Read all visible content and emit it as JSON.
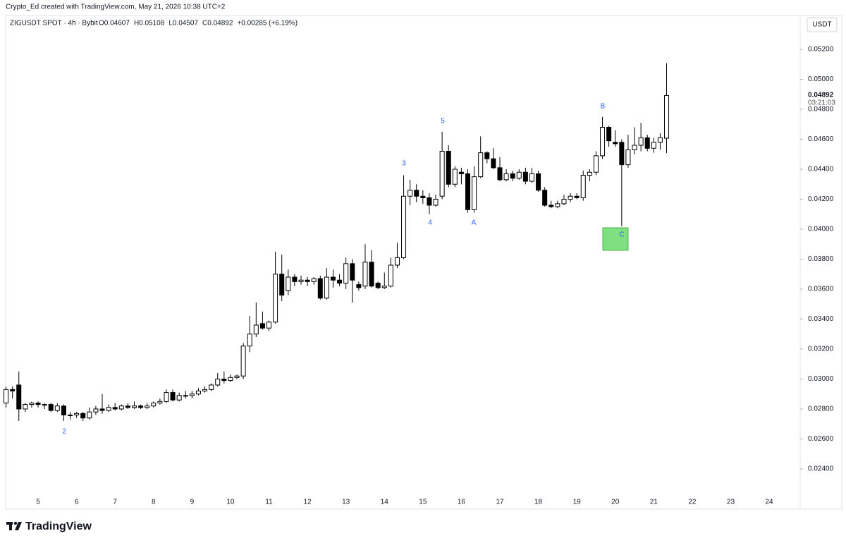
{
  "header": {
    "credit": "Crypto_Ed created with TradingView.com, May 21, 2026 10:38 UTC+2"
  },
  "chart_data": {
    "type": "candlestick",
    "symbol": "ZIGUSDT SPOT · 4h · Bybit",
    "legend_ohlc": [
      "O0.04607",
      "H0.05108",
      "L0.04507",
      "C0.04892"
    ],
    "change": "+0.00285 (+6.19%)",
    "currency": "USDT",
    "last_price_label": "0.04892",
    "countdown": "03:21:03",
    "up_color": "#ffffff",
    "down_color": "#000000",
    "border_color": "#000000",
    "annotation_color": "#2962ff",
    "annotations": [
      "2",
      "3",
      "4",
      "5",
      "A",
      "B",
      "C"
    ],
    "highlight_color": "#7ee07e",
    "grid": false,
    "categories": [
      null,
      null,
      null,
      null,
      null,
      "5",
      null,
      null,
      null,
      null,
      null,
      "6",
      null,
      null,
      null,
      null,
      null,
      "7",
      null,
      null,
      null,
      null,
      null,
      "8",
      null,
      null,
      null,
      null,
      null,
      "9",
      null,
      null,
      null,
      null,
      null,
      "10",
      null,
      null,
      null,
      null,
      null,
      "11",
      null,
      null,
      null,
      null,
      null,
      "12",
      null,
      null,
      null,
      null,
      null,
      "13",
      null,
      null,
      null,
      null,
      null,
      "14",
      null,
      null,
      null,
      null,
      null,
      "15",
      null,
      null,
      null,
      null,
      null,
      "16",
      null,
      null,
      null,
      null,
      null,
      "17",
      null,
      null,
      null,
      null,
      null,
      "18",
      null,
      null,
      null,
      null,
      null,
      "19",
      null,
      null,
      null,
      null,
      null,
      "20",
      null,
      null,
      null,
      null,
      null,
      "21",
      null,
      null,
      null,
      null,
      null,
      "22",
      null,
      null,
      null,
      null,
      null,
      "23",
      null,
      null,
      null,
      null,
      null,
      "24",
      null,
      null,
      null,
      null
    ],
    "open": [
      0.0284,
      0.0293,
      0.0296,
      0.028,
      0.0283,
      0.0284,
      0.0283,
      0.0283,
      0.0279,
      0.0282,
      0.0276,
      0.0276,
      0.0277,
      0.0274,
      0.0278,
      0.028,
      0.0279,
      0.0281,
      0.028,
      0.0282,
      0.0281,
      0.0282,
      0.0281,
      0.0282,
      0.0284,
      0.0285,
      0.0291,
      0.0286,
      0.0289,
      0.0289,
      0.029,
      0.0292,
      0.0293,
      0.0296,
      0.03,
      0.0299,
      0.0301,
      0.0302,
      0.0322,
      0.033,
      0.0337,
      0.0334,
      0.0338,
      0.037,
      0.0359,
      0.0368,
      0.0365,
      0.0366,
      0.0365,
      0.0367,
      0.0354,
      0.0368,
      0.0366,
      0.0364,
      0.0377,
      0.0363,
      0.0362,
      0.0378,
      0.0364,
      0.0361,
      0.0362,
      0.0376,
      0.0381,
      0.0422,
      0.0426,
      0.0422,
      0.0421,
      0.0416,
      0.0422,
      0.0452,
      0.043,
      0.0438,
      0.0437,
      0.0413,
      0.0435,
      0.0451,
      0.0447,
      0.0441,
      0.0433,
      0.0437,
      0.0434,
      0.0438,
      0.0432,
      0.0437,
      0.0426,
      0.0416,
      0.0415,
      0.0417,
      0.042,
      0.0422,
      0.0421,
      0.0436,
      0.0438,
      0.0449,
      0.0468,
      0.0458,
      0.0458,
      0.0443,
      0.0453,
      0.0456,
      0.0461,
      0.0454,
      0.0458,
      0.04607,
      null,
      null,
      null,
      null,
      null,
      null,
      null,
      null,
      null,
      null,
      null,
      null,
      null,
      null,
      null,
      null,
      null,
      null,
      null,
      null
    ],
    "high": [
      0.0295,
      0.0295,
      0.0305,
      0.0284,
      0.0285,
      0.0285,
      0.0284,
      0.0284,
      0.0284,
      0.0283,
      0.0278,
      0.0278,
      0.0278,
      0.0281,
      0.0282,
      0.029,
      0.0283,
      0.0284,
      0.0283,
      0.0284,
      0.0285,
      0.0283,
      0.0284,
      0.0285,
      0.0287,
      0.0293,
      0.0293,
      0.0291,
      0.0292,
      0.0292,
      0.0294,
      0.0295,
      0.0297,
      0.0304,
      0.0305,
      0.0303,
      0.0303,
      0.0324,
      0.0342,
      0.0351,
      0.0345,
      0.0339,
      0.0385,
      0.0383,
      0.0373,
      0.037,
      0.0369,
      0.0368,
      0.0368,
      0.0369,
      0.0374,
      0.0373,
      0.037,
      0.0381,
      0.038,
      0.0365,
      0.039,
      0.0386,
      0.0365,
      0.0371,
      0.0381,
      0.0391,
      0.0436,
      0.0433,
      0.043,
      0.0426,
      0.0424,
      0.0423,
      0.0465,
      0.0456,
      0.0442,
      0.0441,
      0.044,
      0.0442,
      0.0462,
      0.0452,
      0.0454,
      0.0448,
      0.044,
      0.0439,
      0.044,
      0.0441,
      0.0441,
      0.0439,
      0.0428,
      0.0419,
      0.0419,
      0.0423,
      0.0424,
      0.0424,
      0.0439,
      0.044,
      0.0452,
      0.0475,
      0.0469,
      0.0466,
      0.046,
      0.0463,
      0.0468,
      0.0471,
      0.0463,
      0.0461,
      0.0464,
      0.05108,
      null,
      null,
      null,
      null,
      null,
      null,
      null,
      null,
      null,
      null,
      null,
      null,
      null,
      null,
      null,
      null,
      null,
      null,
      null,
      null
    ],
    "low": [
      0.0281,
      0.0287,
      0.0272,
      0.0278,
      0.0281,
      0.0281,
      0.028,
      0.0278,
      0.0278,
      0.0272,
      0.0273,
      0.0274,
      0.0272,
      0.0273,
      0.0276,
      0.0277,
      0.0278,
      0.0279,
      0.0279,
      0.028,
      0.028,
      0.028,
      0.028,
      0.0281,
      0.0283,
      0.0284,
      0.0285,
      0.0285,
      0.0287,
      0.0287,
      0.0289,
      0.0291,
      0.0292,
      0.0295,
      0.0297,
      0.0298,
      0.03,
      0.03,
      0.0318,
      0.0328,
      0.0333,
      0.0332,
      0.0337,
      0.0352,
      0.0356,
      0.0362,
      0.0363,
      0.0362,
      0.0363,
      0.0353,
      0.0353,
      0.0361,
      0.0362,
      0.036,
      0.0351,
      0.0359,
      0.036,
      0.0361,
      0.036,
      0.036,
      0.0361,
      0.0374,
      0.038,
      0.0416,
      0.0418,
      0.0417,
      0.041,
      0.0415,
      0.042,
      0.0428,
      0.0428,
      0.043,
      0.0411,
      0.0411,
      0.0434,
      0.0444,
      0.044,
      0.0432,
      0.0432,
      0.0432,
      0.0433,
      0.043,
      0.0431,
      0.0425,
      0.0415,
      0.0414,
      0.0414,
      0.0416,
      0.0418,
      0.042,
      0.0419,
      0.0432,
      0.0436,
      0.0447,
      0.0455,
      0.0455,
      0.0402,
      0.0441,
      0.045,
      0.0452,
      0.0452,
      0.0451,
      0.0453,
      0.04507,
      null,
      null,
      null,
      null,
      null,
      null,
      null,
      null,
      null,
      null,
      null,
      null,
      null,
      null,
      null,
      null,
      null,
      null,
      null,
      null
    ],
    "close": [
      0.0293,
      0.0292,
      0.028,
      0.0283,
      0.0284,
      0.0283,
      0.0283,
      0.0279,
      0.0282,
      0.0276,
      0.0276,
      0.0277,
      0.0274,
      0.0278,
      0.028,
      0.0279,
      0.0281,
      0.028,
      0.0282,
      0.0281,
      0.0282,
      0.0281,
      0.0282,
      0.0284,
      0.0285,
      0.0291,
      0.0286,
      0.0289,
      0.0289,
      0.029,
      0.0292,
      0.0293,
      0.0296,
      0.03,
      0.0299,
      0.0301,
      0.0302,
      0.0322,
      0.033,
      0.0336,
      0.0334,
      0.0338,
      0.037,
      0.0356,
      0.0368,
      0.0365,
      0.0366,
      0.0365,
      0.0367,
      0.0354,
      0.0368,
      0.0366,
      0.0364,
      0.0377,
      0.0366,
      0.0361,
      0.0378,
      0.0362,
      0.0361,
      0.0362,
      0.0376,
      0.0381,
      0.0422,
      0.0426,
      0.0422,
      0.0421,
      0.0416,
      0.042,
      0.0452,
      0.043,
      0.044,
      0.0437,
      0.0413,
      0.0435,
      0.0451,
      0.0447,
      0.0441,
      0.0433,
      0.0437,
      0.0434,
      0.0438,
      0.0432,
      0.0437,
      0.0426,
      0.0416,
      0.0415,
      0.0417,
      0.042,
      0.0422,
      0.0421,
      0.0436,
      0.0438,
      0.0449,
      0.0468,
      0.0459,
      0.0457,
      0.0443,
      0.0453,
      0.0456,
      0.0461,
      0.0454,
      0.0458,
      0.0461,
      0.04892,
      null,
      null,
      null,
      null,
      null,
      null,
      null,
      null,
      null,
      null,
      null,
      null,
      null,
      null,
      null,
      null,
      null,
      null,
      null,
      null
    ],
    "ylim": [
      0.02235,
      0.05426
    ],
    "yticks": [
      {
        "value": 0.024,
        "label": "0.02400"
      },
      {
        "value": 0.026,
        "label": "0.02600"
      },
      {
        "value": 0.028,
        "label": "0.02800"
      },
      {
        "value": 0.03,
        "label": "0.03000"
      },
      {
        "value": 0.032,
        "label": "0.03200"
      },
      {
        "value": 0.034,
        "label": "0.03400"
      },
      {
        "value": 0.036,
        "label": "0.03600"
      },
      {
        "value": 0.038,
        "label": "0.03800"
      },
      {
        "value": 0.04,
        "label": "0.04000"
      },
      {
        "value": 0.042,
        "label": "0.04200"
      },
      {
        "value": 0.044,
        "label": "0.04400"
      },
      {
        "value": 0.046,
        "label": "0.04600"
      },
      {
        "value": 0.048,
        "label": "0.04800"
      },
      {
        "value": 0.05,
        "label": "0.05000"
      },
      {
        "value": 0.052,
        "label": "0.05200"
      }
    ]
  },
  "footer": {
    "brand": "TradingView"
  }
}
